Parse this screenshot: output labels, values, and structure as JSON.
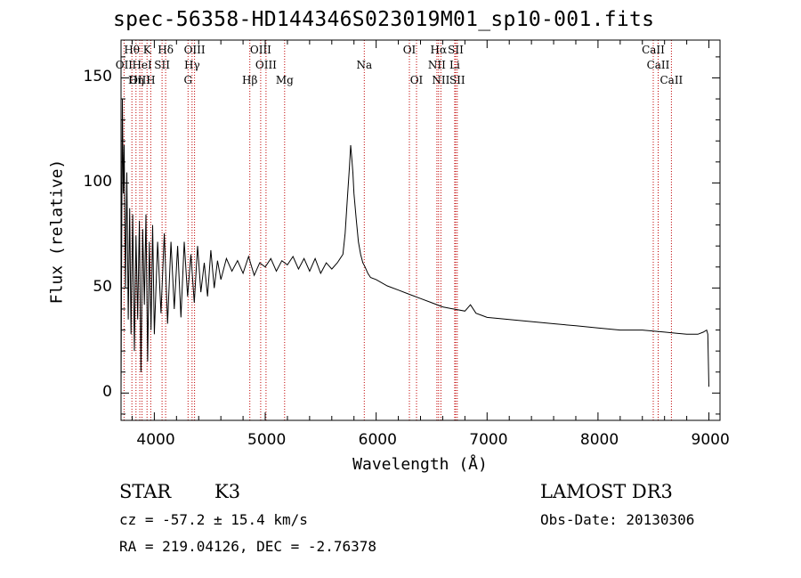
{
  "chart_data": {
    "type": "line",
    "title": "spec-56358-HD144346S023019M01_sp10-001.fits",
    "xlabel": "Wavelength (Å)",
    "ylabel": "Flux (relative)",
    "xlim": [
      3700,
      9100
    ],
    "ylim": [
      -13,
      168
    ],
    "xticks": [
      4000,
      5000,
      6000,
      7000,
      8000,
      9000
    ],
    "yticks": [
      0,
      50,
      100,
      150
    ],
    "grid": false,
    "series": [
      {
        "name": "flux",
        "x": [
          3700,
          3705,
          3712,
          3720,
          3728,
          3740,
          3752,
          3765,
          3778,
          3790,
          3805,
          3820,
          3835,
          3850,
          3865,
          3880,
          3895,
          3910,
          3925,
          3940,
          3955,
          3970,
          3985,
          4000,
          4030,
          4060,
          4090,
          4120,
          4150,
          4180,
          4210,
          4240,
          4270,
          4300,
          4330,
          4360,
          4390,
          4420,
          4450,
          4480,
          4510,
          4540,
          4570,
          4600,
          4650,
          4700,
          4750,
          4800,
          4850,
          4900,
          4950,
          5000,
          5050,
          5100,
          5150,
          5200,
          5250,
          5300,
          5350,
          5400,
          5450,
          5500,
          5550,
          5600,
          5650,
          5700,
          5720,
          5740,
          5760,
          5770,
          5780,
          5790,
          5800,
          5820,
          5840,
          5860,
          5880,
          5900,
          5925,
          5950,
          6000,
          6100,
          6200,
          6300,
          6400,
          6500,
          6600,
          6700,
          6800,
          6850,
          6900,
          6950,
          7000,
          7200,
          7400,
          7600,
          7800,
          8000,
          8200,
          8400,
          8600,
          8800,
          8900,
          8950,
          8980,
          8990,
          9000
        ],
        "y": [
          0,
          60,
          140,
          95,
          118,
          50,
          105,
          35,
          88,
          28,
          85,
          20,
          75,
          35,
          82,
          10,
          78,
          42,
          85,
          15,
          72,
          30,
          80,
          28,
          72,
          38,
          76,
          33,
          72,
          40,
          70,
          36,
          72,
          46,
          66,
          43,
          70,
          48,
          62,
          46,
          68,
          50,
          63,
          54,
          64,
          58,
          63,
          57,
          65,
          56,
          62,
          60,
          64,
          58,
          63,
          61,
          65,
          59,
          64,
          58,
          64,
          57,
          62,
          59,
          62,
          66,
          76,
          92,
          108,
          118,
          112,
          105,
          95,
          83,
          72,
          66,
          62,
          60,
          57,
          55,
          54,
          51,
          49,
          47,
          45,
          43,
          41,
          40,
          39,
          42,
          38,
          37,
          36,
          35,
          34,
          33,
          32,
          31,
          30,
          30,
          29,
          28,
          28,
          29,
          30,
          28,
          3
        ]
      }
    ],
    "lines": [
      {
        "name": "Hθ",
        "x": 3798,
        "label_row": 0
      },
      {
        "name": "K",
        "x": 3934,
        "label_row": 0
      },
      {
        "name": "Hδ",
        "x": 4102,
        "label_row": 0
      },
      {
        "name": "OIII",
        "x": 4363,
        "label_row": 0
      },
      {
        "name": "OIII",
        "x": 4959,
        "label_row": 0
      },
      {
        "name": "OI",
        "x": 6300,
        "label_row": 0
      },
      {
        "name": "Hα",
        "x": 6563,
        "label_row": 0
      },
      {
        "name": "SII",
        "x": 6717,
        "label_row": 0
      },
      {
        "name": "CaII",
        "x": 8498,
        "label_row": 0
      },
      {
        "name": "OII",
        "x": 3727,
        "label_row": 1
      },
      {
        "name": "HeI",
        "x": 3889,
        "label_row": 1
      },
      {
        "name": "SII",
        "x": 4070,
        "label_row": 1
      },
      {
        "name": "Hγ",
        "x": 4340,
        "label_row": 1
      },
      {
        "name": "OIII",
        "x": 5007,
        "label_row": 1
      },
      {
        "name": "Na",
        "x": 5893,
        "label_row": 1
      },
      {
        "name": "NII",
        "x": 6548,
        "label_row": 1
      },
      {
        "name": "Li",
        "x": 6708,
        "label_row": 1
      },
      {
        "name": "CaII",
        "x": 8542,
        "label_row": 1
      },
      {
        "name": "OIII",
        "x": 3869,
        "label_row": 2
      },
      {
        "name": "Hη",
        "x": 3835,
        "label_row": 2
      },
      {
        "name": "H",
        "x": 3968,
        "label_row": 2
      },
      {
        "name": "G",
        "x": 4304,
        "label_row": 2
      },
      {
        "name": "Hβ",
        "x": 4861,
        "label_row": 2
      },
      {
        "name": "Mg",
        "x": 5175,
        "label_row": 2
      },
      {
        "name": "OI",
        "x": 6364,
        "label_row": 2
      },
      {
        "name": "NII",
        "x": 6584,
        "label_row": 2
      },
      {
        "name": "SII",
        "x": 6731,
        "label_row": 2
      },
      {
        "name": "CaII",
        "x": 8662,
        "label_row": 2
      }
    ],
    "colors": {
      "line": "#000000",
      "marker": "#c00000",
      "frame": "#000000"
    }
  },
  "info": {
    "object_class": "STAR",
    "subclass": "K3",
    "survey": "LAMOST DR3",
    "cz": "cz = -57.2 ± 15.4 km/s",
    "obs_date": "Obs-Date: 20130306",
    "coords": "RA = 219.04126, DEC =  -2.76378"
  }
}
